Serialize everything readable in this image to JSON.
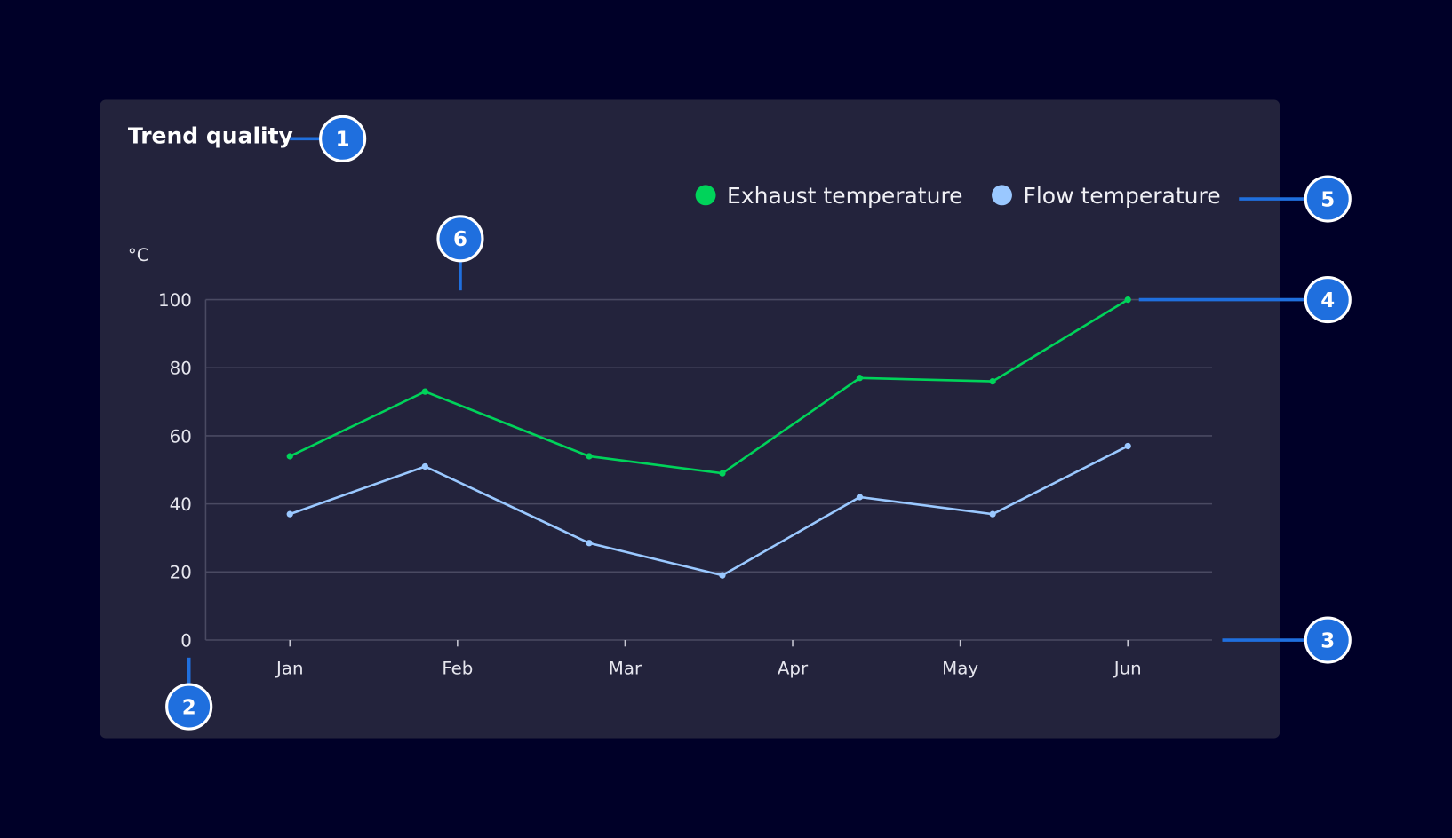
{
  "colors": {
    "background": "#000028",
    "card": "#23233c",
    "grid": "#4a4a62",
    "exhaust": "#00d35a",
    "flow": "#9ac8ff",
    "callout": "#1f6fde"
  },
  "callouts": [
    "1",
    "2",
    "3",
    "4",
    "5",
    "6"
  ],
  "chart_data": {
    "type": "line",
    "title": "Trend quality",
    "ylabel": "°C",
    "xlabel": "",
    "ylim": [
      0,
      100
    ],
    "yticks": [
      "0",
      "20",
      "40",
      "60",
      "80",
      "100"
    ],
    "xticks": [
      "Jan",
      "Feb",
      "Mar",
      "Apr",
      "May",
      "Jun"
    ],
    "grid": true,
    "legend_position": "top-right",
    "x": [
      "Jan 1",
      "Jan 26",
      "Feb 23",
      "Mar 19",
      "Apr 13",
      "May 7",
      "Jun 1"
    ],
    "series": [
      {
        "name": "Exhaust temperature",
        "color": "#00d35a",
        "values": [
          54,
          73,
          54,
          49,
          77,
          76,
          100
        ]
      },
      {
        "name": "Flow temperature",
        "color": "#9ac8ff",
        "values": [
          37,
          51,
          28.5,
          19,
          42,
          37,
          57
        ]
      }
    ]
  }
}
